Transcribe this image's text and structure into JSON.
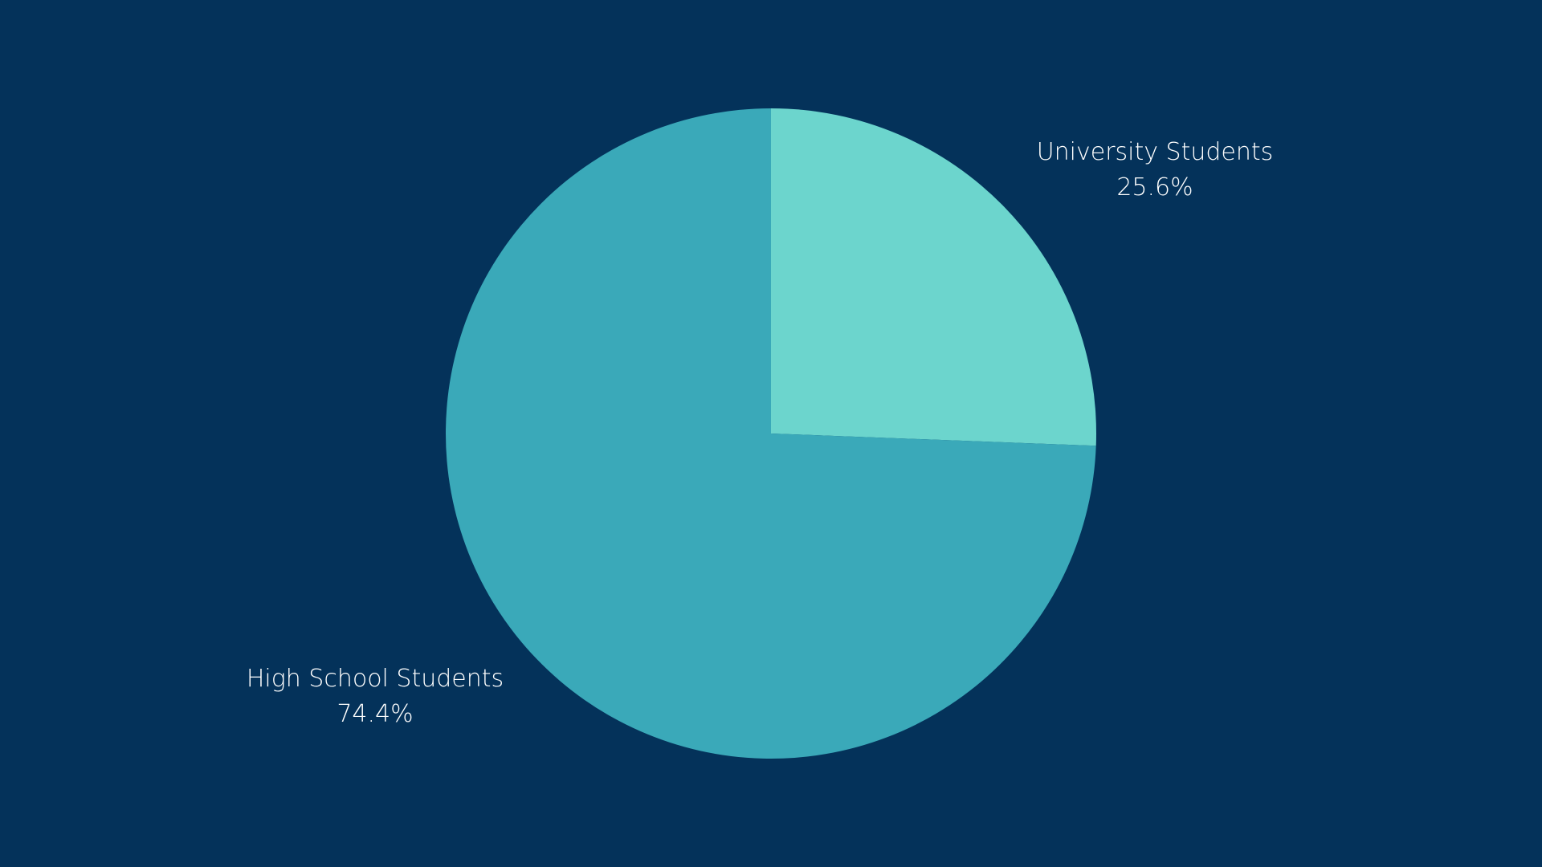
{
  "colors": {
    "background": "#04325A",
    "label_text": "#FFFFFF"
  },
  "chart_data": {
    "type": "pie",
    "slices": [
      {
        "label": "University Students",
        "value": 25.6,
        "value_label": "25.6%",
        "color": "#6CD5CD"
      },
      {
        "label": "High School Students",
        "value": 74.4,
        "value_label": "74.4%",
        "color": "#3AA9B9"
      }
    ],
    "start_angle": "12 o'clock",
    "direction": "clockwise",
    "legend": "none"
  }
}
